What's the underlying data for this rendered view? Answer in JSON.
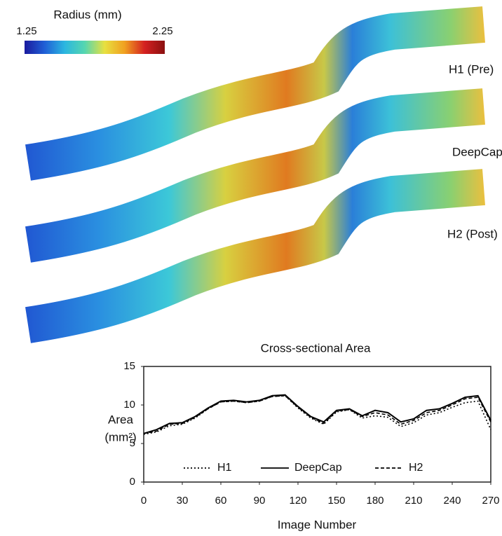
{
  "colorbar": {
    "title": "Radius (mm)",
    "ticks": [
      1.25,
      2.25
    ],
    "colors": [
      "#1a1a9e",
      "#1f5fd6",
      "#2bb6e0",
      "#55d6b0",
      "#e8e040",
      "#f0a020",
      "#d42020",
      "#8a1010"
    ]
  },
  "vessel_labels": [
    "H1 (Pre)",
    "DeepCap",
    "H2 (Post)"
  ],
  "chart_data": {
    "type": "line",
    "title": "Cross-sectional Area",
    "xlabel": "Image Number",
    "ylabel": [
      "Area",
      "(mm²)"
    ],
    "x": [
      0,
      10,
      20,
      30,
      40,
      50,
      60,
      70,
      80,
      90,
      100,
      110,
      120,
      130,
      140,
      150,
      160,
      170,
      180,
      190,
      200,
      210,
      220,
      230,
      240,
      250,
      260,
      270
    ],
    "series": [
      {
        "name": "H1",
        "color": "#000000",
        "dash": "2,3",
        "values": [
          6.2,
          6.5,
          7.3,
          7.5,
          8.3,
          9.5,
          10.4,
          10.5,
          10.3,
          10.5,
          11.1,
          11.2,
          9.6,
          8.3,
          7.5,
          9.1,
          9.4,
          8.3,
          8.6,
          8.4,
          7.2,
          7.7,
          8.7,
          9.0,
          9.7,
          10.3,
          10.5,
          6.8
        ]
      },
      {
        "name": "DeepCap",
        "color": "#000000",
        "dash": "none",
        "values": [
          6.3,
          6.8,
          7.6,
          7.7,
          8.5,
          9.6,
          10.5,
          10.6,
          10.4,
          10.6,
          11.2,
          11.3,
          9.8,
          8.5,
          7.8,
          9.3,
          9.5,
          8.6,
          9.3,
          9.0,
          7.8,
          8.2,
          9.3,
          9.5,
          10.2,
          11.0,
          11.2,
          8.0
        ]
      },
      {
        "name": "H2",
        "color": "#000000",
        "dash": "5,3",
        "values": [
          6.3,
          6.6,
          7.5,
          7.6,
          8.4,
          9.5,
          10.4,
          10.5,
          10.3,
          10.5,
          11.1,
          11.2,
          9.7,
          8.4,
          7.6,
          9.2,
          9.4,
          8.5,
          9.0,
          8.7,
          7.5,
          8.0,
          9.0,
          9.3,
          10.0,
          10.8,
          11.0,
          7.8
        ]
      }
    ],
    "xlim": [
      0,
      270
    ],
    "xticks": [
      0,
      30,
      60,
      90,
      120,
      150,
      180,
      210,
      240,
      270
    ],
    "ylim": [
      0,
      15
    ],
    "yticks": [
      0,
      5,
      10,
      15
    ],
    "grid": false,
    "legend": "bottom"
  }
}
